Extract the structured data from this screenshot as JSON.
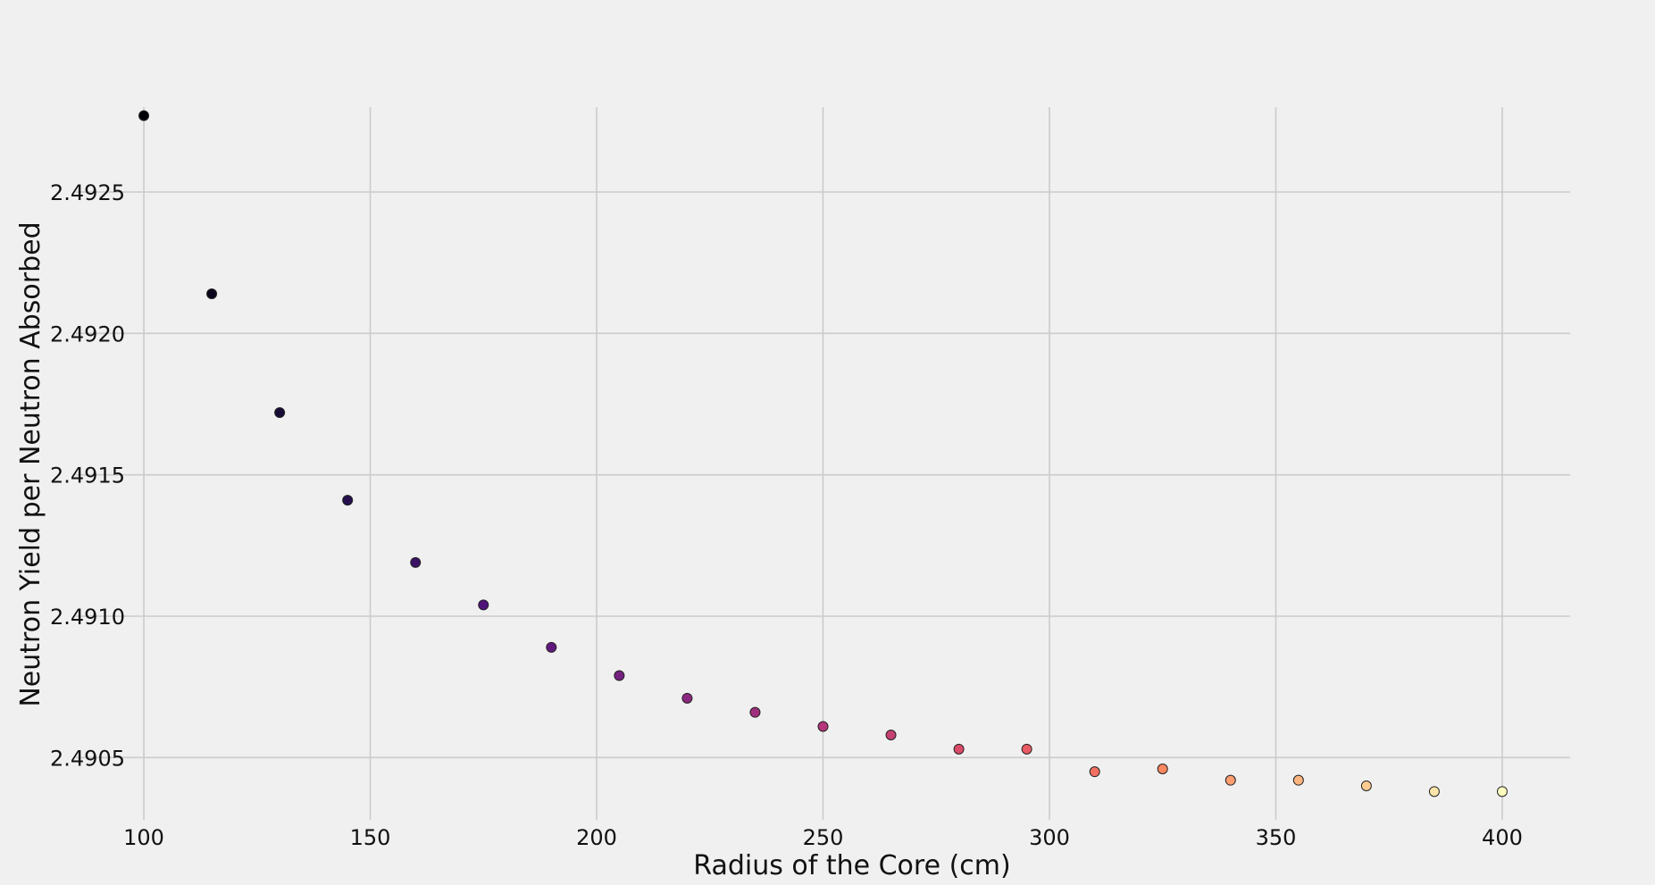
{
  "chart_data": {
    "type": "scatter",
    "title": "",
    "xlabel": "Radius of the Core (cm)",
    "ylabel": "Neutron Yield per Neutron Absorbed",
    "xlim": [
      85,
      415
    ],
    "ylim": [
      2.49028,
      2.4928
    ],
    "x_ticks": [
      100,
      150,
      200,
      250,
      300,
      350,
      400
    ],
    "x_tick_labels": [
      "100",
      "150",
      "200",
      "250",
      "300",
      "350",
      "400"
    ],
    "y_ticks": [
      2.4905,
      2.491,
      2.4915,
      2.492,
      2.4925
    ],
    "y_tick_labels": [
      "2.4905",
      "2.4910",
      "2.4915",
      "2.4920",
      "2.4925"
    ],
    "grid": true,
    "colormap": "magma",
    "x": [
      100,
      115,
      130,
      145,
      160,
      175,
      190,
      205,
      220,
      235,
      250,
      265,
      280,
      295,
      310,
      325,
      340,
      355,
      370,
      385,
      400
    ],
    "y": [
      2.49277,
      2.49214,
      2.49172,
      2.49141,
      2.49119,
      2.49104,
      2.49089,
      2.49079,
      2.49071,
      2.49066,
      2.49061,
      2.49058,
      2.49053,
      2.49053,
      2.49045,
      2.49046,
      2.49042,
      2.49042,
      2.4904,
      2.49038,
      2.49038
    ]
  }
}
